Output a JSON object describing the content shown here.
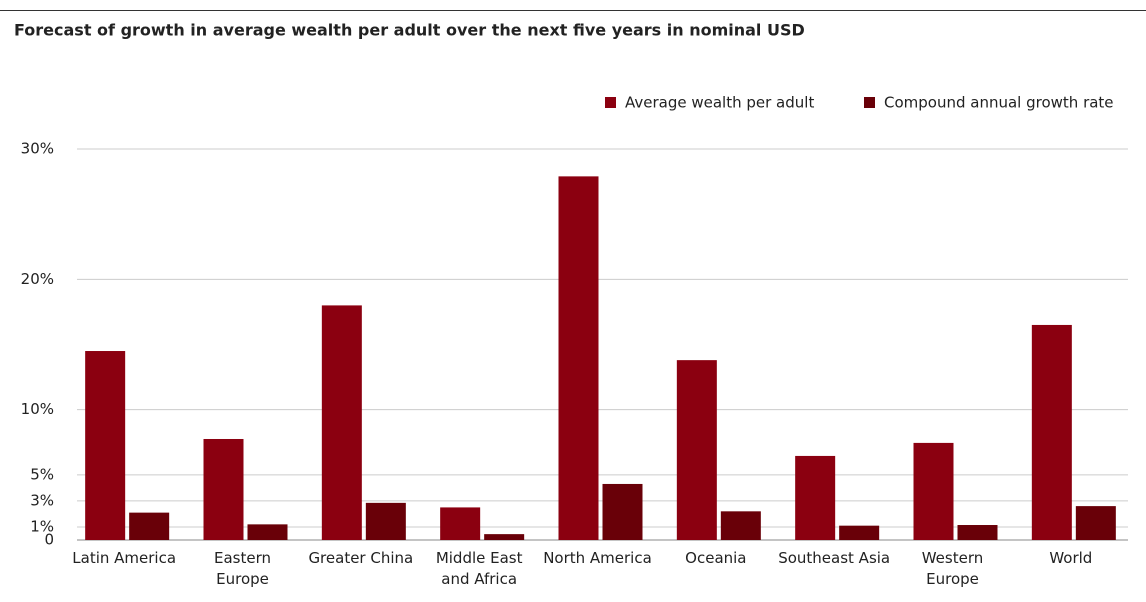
{
  "chart_data": {
    "type": "bar",
    "title": "Forecast of growth in average wealth per adult over the next five years in nominal USD",
    "categories": [
      "Latin America",
      "Eastern\nEurope",
      "Greater China",
      "Middle East\nand Africa",
      "North America",
      "Oceania",
      "Southeast Asia",
      "Western\nEurope",
      "World"
    ],
    "series": [
      {
        "name": "Average wealth per adult",
        "color": "#8b0010",
        "values": [
          14.5,
          7.75,
          18.0,
          2.5,
          27.9,
          13.8,
          6.45,
          7.45,
          16.5
        ]
      },
      {
        "name": "Compound annual growth rate",
        "color": "#690008",
        "values": [
          2.1,
          1.2,
          2.85,
          0.45,
          4.3,
          2.2,
          1.1,
          1.15,
          2.6
        ]
      }
    ],
    "ylim": [
      0,
      30
    ],
    "yticks": [
      0,
      {
        "value": 1,
        "label": "1%"
      },
      {
        "value": 3,
        "label": "3%"
      },
      {
        "value": 5,
        "label": "5%"
      },
      {
        "value": 10,
        "label": "10%"
      },
      {
        "value": 20,
        "label": "20%"
      },
      {
        "value": 30,
        "label": "30%"
      }
    ],
    "grid": true
  }
}
